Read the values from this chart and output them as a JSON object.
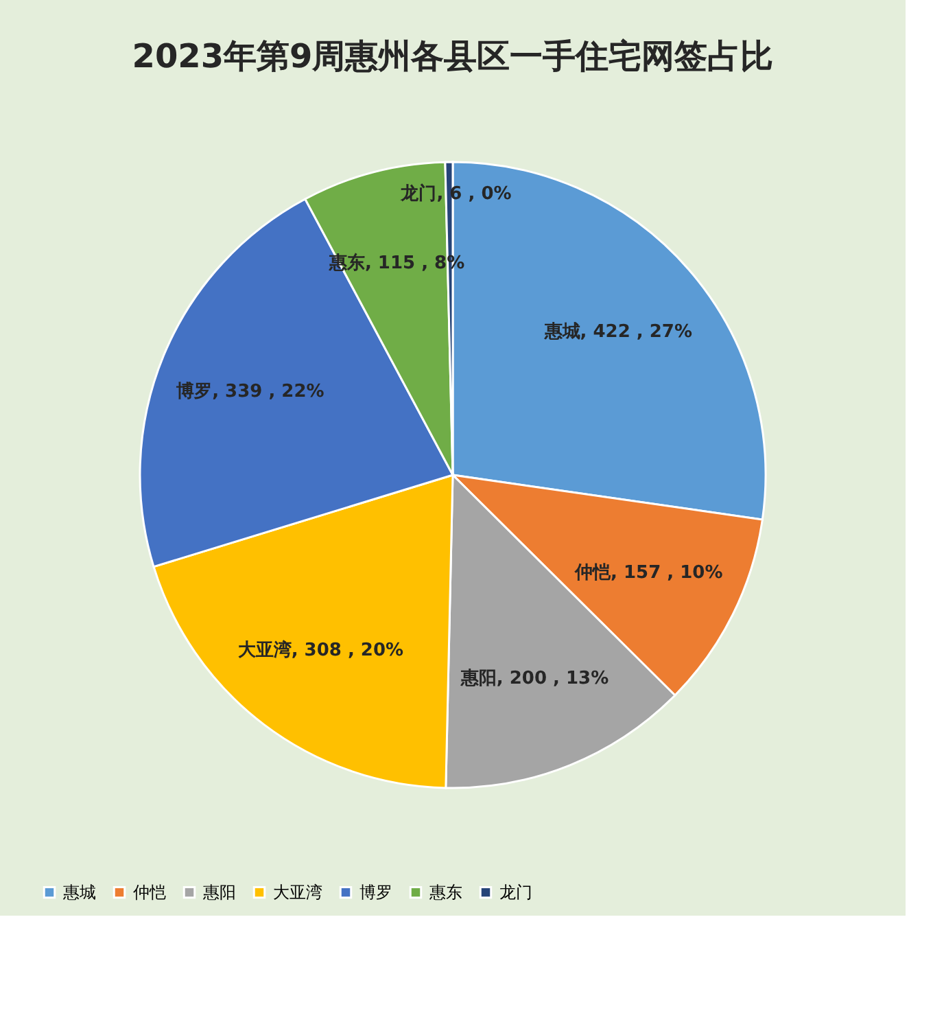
{
  "chart_data": {
    "type": "pie",
    "title": "2023年第9周惠州各县区一手住宅网签占比",
    "categories": [
      "惠城",
      "仲恺",
      "惠阳",
      "大亚湾",
      "博罗",
      "惠东",
      "龙门"
    ],
    "values": [
      422,
      157,
      200,
      308,
      339,
      115,
      6
    ],
    "colors": [
      "#5b9bd5",
      "#ed7d31",
      "#a5a5a5",
      "#ffc000",
      "#4472c4",
      "#70ad47",
      "#264478"
    ],
    "value_labels": [
      "惠城, 422 , 27%",
      "仲恺, 157 , 10%",
      "惠阳, 200 , 13%",
      "大亚湾, 308 , 20%",
      "博罗, 339 , 22%",
      "惠东, 115 , 8%",
      "龙门, 6 , 0%"
    ],
    "legend": "bottom"
  }
}
